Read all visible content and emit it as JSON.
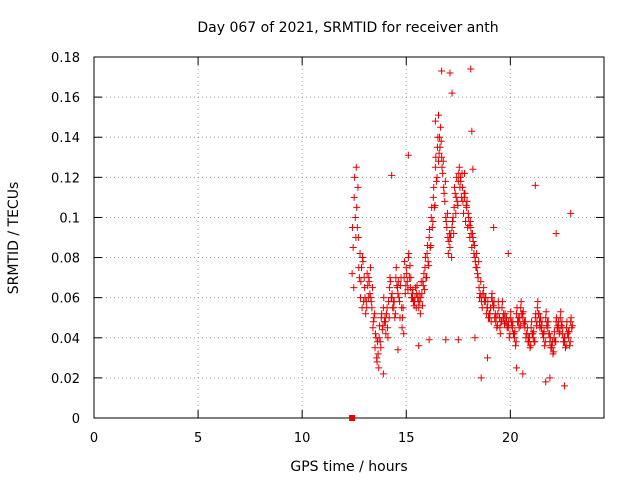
{
  "chart_data": {
    "type": "scatter",
    "title": "Day 067 of 2021, SRMTID for receiver anth",
    "xlabel": "GPS time / hours",
    "ylabel": "SRMTID / TECUs",
    "xlim": [
      0,
      24.5
    ],
    "ylim": [
      0,
      0.18
    ],
    "xticks": [
      0,
      5,
      10,
      15,
      20
    ],
    "yticks": [
      0,
      0.02,
      0.04,
      0.06,
      0.08,
      0.1,
      0.12,
      0.14,
      0.16,
      0.18
    ],
    "ytick_labels": [
      "0",
      "0.02",
      "0.04",
      "0.06",
      "0.08",
      "0.1",
      "0.12",
      "0.14",
      "0.16",
      "0.18"
    ],
    "grid": true,
    "marker": "+",
    "color": "#e60000",
    "zero_marker": {
      "x": 12.4,
      "y": 0
    },
    "series": [
      {
        "name": "SRMTID",
        "x": [
          12.4,
          12.5,
          12.6,
          12.7,
          12.8,
          12.9,
          13.0,
          13.1,
          13.2,
          13.3,
          13.4,
          13.5,
          13.6,
          13.7,
          13.8,
          13.9,
          14.0,
          14.1,
          14.2,
          14.3,
          14.4,
          14.5,
          14.6,
          14.7,
          14.8,
          14.9,
          15.0,
          15.1,
          15.2,
          15.3,
          15.4,
          15.5,
          15.6,
          15.7,
          15.8,
          15.9,
          16.0,
          16.1,
          16.2,
          16.3,
          16.4,
          16.5,
          16.6,
          16.7,
          16.8,
          16.9,
          17.0,
          17.1,
          17.2,
          17.3,
          17.4,
          17.5,
          17.6,
          17.7,
          17.8,
          17.9,
          18.0,
          18.1,
          18.2,
          18.3,
          18.4,
          18.5,
          18.6,
          18.7,
          18.8,
          18.9,
          19.0,
          19.1,
          19.2,
          19.3,
          19.4,
          19.5,
          19.6,
          19.7,
          19.8,
          19.9,
          20.0,
          20.1,
          20.2,
          20.3,
          20.4,
          20.5,
          20.6,
          20.7,
          20.8,
          20.9,
          21.0,
          21.1,
          21.2,
          21.3,
          21.4,
          21.5,
          21.6,
          21.7,
          21.8,
          21.9,
          22.0,
          22.1,
          22.2,
          22.3,
          22.4,
          22.5,
          22.6,
          22.7,
          22.8,
          22.9,
          12.45,
          12.55,
          12.65,
          12.75,
          12.85,
          12.95,
          13.05,
          13.15,
          13.25,
          13.35,
          13.45,
          13.55,
          13.65,
          13.75,
          13.85,
          13.95,
          14.05,
          14.15,
          14.25,
          14.35,
          14.45,
          14.55,
          14.65,
          14.75,
          14.85,
          14.95,
          15.05,
          15.15,
          15.25,
          15.35,
          15.45,
          15.55,
          15.65,
          15.75,
          15.85,
          15.95,
          16.05,
          16.15,
          16.25,
          16.35,
          16.45,
          16.55,
          16.65,
          16.75,
          16.85,
          16.95,
          17.05,
          17.15,
          17.25,
          17.35,
          17.45,
          17.55,
          17.65,
          17.75,
          17.85,
          17.95,
          18.05,
          18.15,
          18.25,
          18.35,
          18.45,
          18.55,
          18.65,
          18.75,
          18.85,
          18.95,
          19.05,
          19.15,
          19.25,
          19.35,
          19.45,
          19.55,
          19.65,
          19.75,
          19.85,
          19.95,
          20.05,
          20.15,
          20.25,
          20.35,
          20.45,
          20.55,
          20.65,
          20.75,
          20.85,
          20.95,
          21.05,
          21.15,
          21.25,
          21.35,
          21.45,
          21.55,
          21.65,
          21.75,
          21.85,
          21.95,
          22.05,
          22.15,
          22.25,
          22.35,
          22.45,
          22.55,
          22.65,
          22.75,
          22.85,
          22.95,
          12.42,
          12.52,
          12.62,
          12.72,
          12.82,
          12.92,
          13.02,
          13.12,
          13.22,
          13.32,
          13.42,
          13.52,
          13.62,
          13.72,
          13.82,
          13.92,
          14.02,
          14.12,
          14.22,
          14.32,
          14.42,
          14.52,
          14.62,
          14.72,
          14.82,
          14.92,
          15.02,
          15.12,
          15.22,
          15.32,
          15.42,
          15.52,
          15.62,
          15.72,
          15.82,
          15.92,
          16.02,
          16.12,
          16.22,
          16.32,
          16.42,
          16.52,
          16.62,
          16.72,
          16.82,
          16.92,
          17.02,
          17.12,
          17.22,
          17.32,
          17.42,
          17.52,
          17.62,
          17.72,
          17.82,
          17.92,
          18.02,
          18.12,
          18.22,
          18.32,
          18.42,
          18.52,
          18.62,
          18.72,
          18.82,
          18.92,
          19.02,
          19.12,
          19.22,
          19.32,
          19.42,
          19.52,
          19.62,
          19.72,
          19.82,
          19.92,
          20.02,
          20.12,
          20.22,
          20.32,
          20.42,
          20.52,
          20.62,
          20.72,
          20.82,
          20.92,
          21.02,
          21.12,
          21.22,
          21.32,
          21.42,
          21.52,
          21.62,
          21.72,
          21.82,
          21.92,
          22.02,
          22.12,
          22.22,
          22.32,
          22.42,
          22.52,
          22.62,
          22.72,
          22.82,
          22.92,
          12.48,
          12.58,
          12.68,
          12.78,
          12.88,
          12.98,
          13.08,
          13.18,
          13.28,
          13.38,
          13.48,
          13.58,
          13.68,
          13.78,
          13.88,
          13.98,
          14.08,
          14.18,
          14.28,
          14.38,
          14.48,
          14.58,
          14.68,
          14.78,
          14.88,
          14.98,
          15.08,
          15.18,
          15.28,
          15.38,
          15.48,
          15.58,
          15.68,
          15.78,
          15.88,
          15.98,
          16.08,
          16.18,
          16.28,
          16.38,
          16.48,
          16.58,
          16.68,
          16.78,
          16.88,
          16.98,
          17.08,
          17.18,
          17.28,
          17.38,
          17.48,
          17.58,
          17.68,
          17.78,
          17.88,
          17.98,
          18.08,
          18.18,
          18.28,
          18.38,
          18.48,
          18.58,
          18.68,
          18.78,
          18.88,
          18.98,
          19.08,
          19.18,
          19.28,
          19.38,
          19.48,
          19.58,
          19.68,
          19.78,
          19.88,
          19.98,
          20.08,
          20.18,
          20.28,
          20.38,
          20.48,
          20.58,
          20.68,
          20.78,
          20.88,
          20.98,
          21.08,
          21.18,
          21.28,
          21.38,
          21.48,
          21.58,
          21.68,
          21.78,
          21.88,
          21.98,
          22.08,
          22.18,
          22.28,
          22.38,
          22.48,
          22.58,
          22.68,
          22.78,
          22.88,
          22.98,
          13.9,
          14.3,
          14.6,
          15.1,
          15.6,
          16.1,
          16.4,
          16.55,
          16.7,
          16.9,
          17.1,
          17.2,
          17.5,
          17.8,
          18.1,
          18.15,
          18.2,
          18.3,
          18.6,
          18.9,
          19.2,
          19.9,
          20.3,
          20.6,
          21.2,
          21.7,
          21.9,
          22.2,
          22.6,
          22.9
        ],
        "y": [
          0.072,
          0.11,
          0.125,
          0.09,
          0.06,
          0.08,
          0.065,
          0.055,
          0.07,
          0.06,
          0.045,
          0.035,
          0.028,
          0.04,
          0.05,
          0.055,
          0.048,
          0.045,
          0.065,
          0.06,
          0.055,
          0.07,
          0.062,
          0.05,
          0.045,
          0.07,
          0.075,
          0.08,
          0.065,
          0.06,
          0.058,
          0.062,
          0.055,
          0.06,
          0.068,
          0.075,
          0.082,
          0.09,
          0.1,
          0.11,
          0.125,
          0.135,
          0.14,
          0.13,
          0.115,
          0.1,
          0.09,
          0.085,
          0.095,
          0.105,
          0.11,
          0.118,
          0.12,
          0.115,
          0.11,
          0.105,
          0.1,
          0.095,
          0.09,
          0.08,
          0.075,
          0.065,
          0.06,
          0.062,
          0.058,
          0.055,
          0.05,
          0.06,
          0.055,
          0.048,
          0.052,
          0.045,
          0.055,
          0.05,
          0.048,
          0.045,
          0.05,
          0.045,
          0.04,
          0.052,
          0.048,
          0.055,
          0.05,
          0.045,
          0.042,
          0.038,
          0.045,
          0.04,
          0.05,
          0.055,
          0.048,
          0.045,
          0.04,
          0.05,
          0.045,
          0.038,
          0.035,
          0.04,
          0.048,
          0.045,
          0.05,
          0.042,
          0.038,
          0.045,
          0.04,
          0.048,
          0.085,
          0.1,
          0.095,
          0.07,
          0.075,
          0.058,
          0.052,
          0.066,
          0.062,
          0.055,
          0.05,
          0.04,
          0.032,
          0.038,
          0.044,
          0.048,
          0.052,
          0.058,
          0.068,
          0.055,
          0.05,
          0.066,
          0.06,
          0.07,
          0.055,
          0.062,
          0.068,
          0.07,
          0.06,
          0.058,
          0.065,
          0.06,
          0.058,
          0.062,
          0.072,
          0.07,
          0.078,
          0.085,
          0.095,
          0.105,
          0.118,
          0.128,
          0.145,
          0.122,
          0.108,
          0.095,
          0.088,
          0.092,
          0.1,
          0.112,
          0.108,
          0.125,
          0.11,
          0.102,
          0.098,
          0.095,
          0.09,
          0.085,
          0.082,
          0.075,
          0.07,
          0.062,
          0.055,
          0.058,
          0.052,
          0.05,
          0.055,
          0.058,
          0.05,
          0.045,
          0.055,
          0.048,
          0.05,
          0.052,
          0.045,
          0.04,
          0.048,
          0.042,
          0.036,
          0.048,
          0.05,
          0.052,
          0.047,
          0.04,
          0.038,
          0.035,
          0.042,
          0.038,
          0.046,
          0.052,
          0.05,
          0.042,
          0.036,
          0.046,
          0.042,
          0.035,
          0.032,
          0.038,
          0.045,
          0.042,
          0.046,
          0.038,
          0.035,
          0.042,
          0.036,
          0.045,
          0.095,
          0.12,
          0.105,
          0.075,
          0.068,
          0.078,
          0.06,
          0.072,
          0.068,
          0.058,
          0.048,
          0.042,
          0.038,
          0.046,
          0.052,
          0.06,
          0.042,
          0.04,
          0.07,
          0.062,
          0.058,
          0.075,
          0.068,
          0.066,
          0.05,
          0.078,
          0.072,
          0.082,
          0.07,
          0.064,
          0.06,
          0.066,
          0.062,
          0.068,
          0.066,
          0.08,
          0.086,
          0.094,
          0.105,
          0.115,
          0.13,
          0.14,
          0.135,
          0.125,
          0.112,
          0.098,
          0.082,
          0.09,
          0.098,
          0.115,
          0.12,
          0.122,
          0.118,
          0.108,
          0.112,
          0.108,
          0.096,
          0.092,
          0.088,
          0.078,
          0.072,
          0.06,
          0.058,
          0.065,
          0.06,
          0.058,
          0.052,
          0.062,
          0.058,
          0.05,
          0.058,
          0.042,
          0.058,
          0.047,
          0.05,
          0.048,
          0.053,
          0.048,
          0.043,
          0.055,
          0.045,
          0.058,
          0.053,
          0.048,
          0.045,
          0.04,
          0.048,
          0.043,
          0.052,
          0.058,
          0.045,
          0.048,
          0.043,
          0.053,
          0.048,
          0.04,
          0.038,
          0.043,
          0.05,
          0.048,
          0.053,
          0.045,
          0.04,
          0.048,
          0.043,
          0.05,
          0.065,
          0.09,
          0.115,
          0.082,
          0.055,
          0.07,
          0.058,
          0.06,
          0.075,
          0.065,
          0.052,
          0.03,
          0.025,
          0.035,
          0.046,
          0.05,
          0.055,
          0.05,
          0.06,
          0.058,
          0.052,
          0.065,
          0.058,
          0.055,
          0.042,
          0.066,
          0.064,
          0.076,
          0.062,
          0.056,
          0.055,
          0.058,
          0.052,
          0.056,
          0.064,
          0.07,
          0.076,
          0.086,
          0.098,
          0.106,
          0.12,
          0.132,
          0.138,
          0.128,
          0.118,
          0.102,
          0.092,
          0.08,
          0.092,
          0.102,
          0.106,
          0.115,
          0.122,
          0.112,
          0.106,
          0.102,
          0.098,
          0.092,
          0.086,
          0.082,
          0.078,
          0.068,
          0.062,
          0.06,
          0.055,
          0.052,
          0.048,
          0.056,
          0.052,
          0.046,
          0.05,
          0.048,
          0.052,
          0.048,
          0.046,
          0.042,
          0.046,
          0.042,
          0.038,
          0.05,
          0.046,
          0.052,
          0.048,
          0.042,
          0.04,
          0.036,
          0.042,
          0.038,
          0.048,
          0.052,
          0.046,
          0.042,
          0.038,
          0.048,
          0.042,
          0.036,
          0.033,
          0.038,
          0.046,
          0.043,
          0.048,
          0.04,
          0.036,
          0.043,
          0.038,
          0.046,
          0.022,
          0.121,
          0.034,
          0.131,
          0.036,
          0.039,
          0.148,
          0.151,
          0.173,
          0.039,
          0.172,
          0.162,
          0.039,
          0.122,
          0.174,
          0.143,
          0.124,
          0.04,
          0.02,
          0.03,
          0.095,
          0.082,
          0.025,
          0.022,
          0.116,
          0.018,
          0.02,
          0.092,
          0.016,
          0.102
        ]
      }
    ]
  }
}
